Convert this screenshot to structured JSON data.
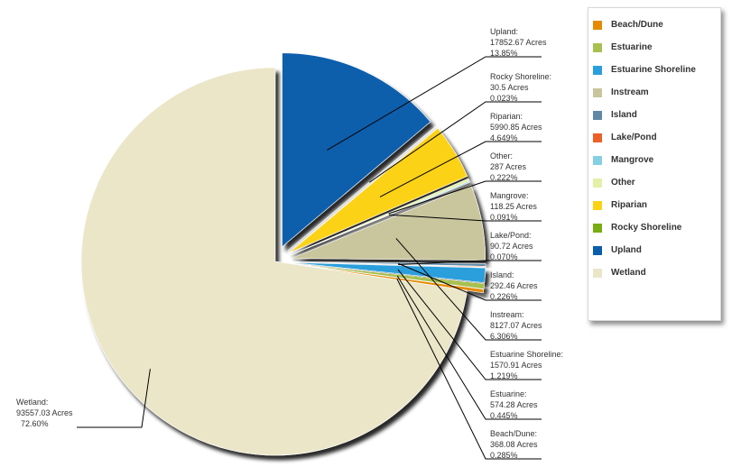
{
  "chart_data": {
    "type": "pie",
    "title": "",
    "unit": "Acres",
    "legend_position": "right",
    "slices": [
      {
        "name": "Beach/Dune",
        "value_text": "368.08 Acres",
        "value": 368.08,
        "percent_text": "0.285%",
        "percent": 0.285,
        "color": "#e68a00"
      },
      {
        "name": "Estuarine",
        "value_text": "574.28 Acres",
        "value": 574.28,
        "percent_text": "0.445%",
        "percent": 0.445,
        "color": "#a8c050"
      },
      {
        "name": "Estuarine Shoreline",
        "value_text": "1570.91 Acres",
        "value": 1570.91,
        "percent_text": "1.219%",
        "percent": 1.219,
        "color": "#2a9fdc"
      },
      {
        "name": "Instream",
        "value_text": "8127.07 Acres",
        "value": 8127.07,
        "percent_text": "6.306%",
        "percent": 6.306,
        "color": "#c9c59d"
      },
      {
        "name": "Island",
        "value_text": "292.46 Acres",
        "value": 292.46,
        "percent_text": "0.226%",
        "percent": 0.226,
        "color": "#5e88a6"
      },
      {
        "name": "Lake/Pond",
        "value_text": "90.72 Acres",
        "value": 90.72,
        "percent_text": "0.070%",
        "percent": 0.07,
        "color": "#ec5f28"
      },
      {
        "name": "Mangrove",
        "value_text": "118.25 Acres",
        "value": 118.25,
        "percent_text": "0.091%",
        "percent": 0.091,
        "color": "#86d0e4"
      },
      {
        "name": "Other",
        "value_text": "287 Acres",
        "value": 287,
        "percent_text": "0.222%",
        "percent": 0.222,
        "color": "#e4f0a8"
      },
      {
        "name": "Riparian",
        "value_text": "5990.85 Acres",
        "value": 5990.85,
        "percent_text": "4.649%",
        "percent": 4.649,
        "color": "#fcd212"
      },
      {
        "name": "Rocky Shoreline",
        "value_text": "30.5 Acres",
        "value": 30.5,
        "percent_text": "0.023%",
        "percent": 0.023,
        "color": "#78ac10"
      },
      {
        "name": "Upland",
        "value_text": "17852.67 Acres",
        "value": 17852.67,
        "percent_text": "13.85%",
        "percent": 13.85,
        "color": "#0a5eac"
      },
      {
        "name": "Wetland",
        "value_text": "93557.03 Acres",
        "value": 93557.03,
        "percent_text": "72.60%",
        "percent": 72.6,
        "color": "#ebe6c8"
      }
    ]
  }
}
